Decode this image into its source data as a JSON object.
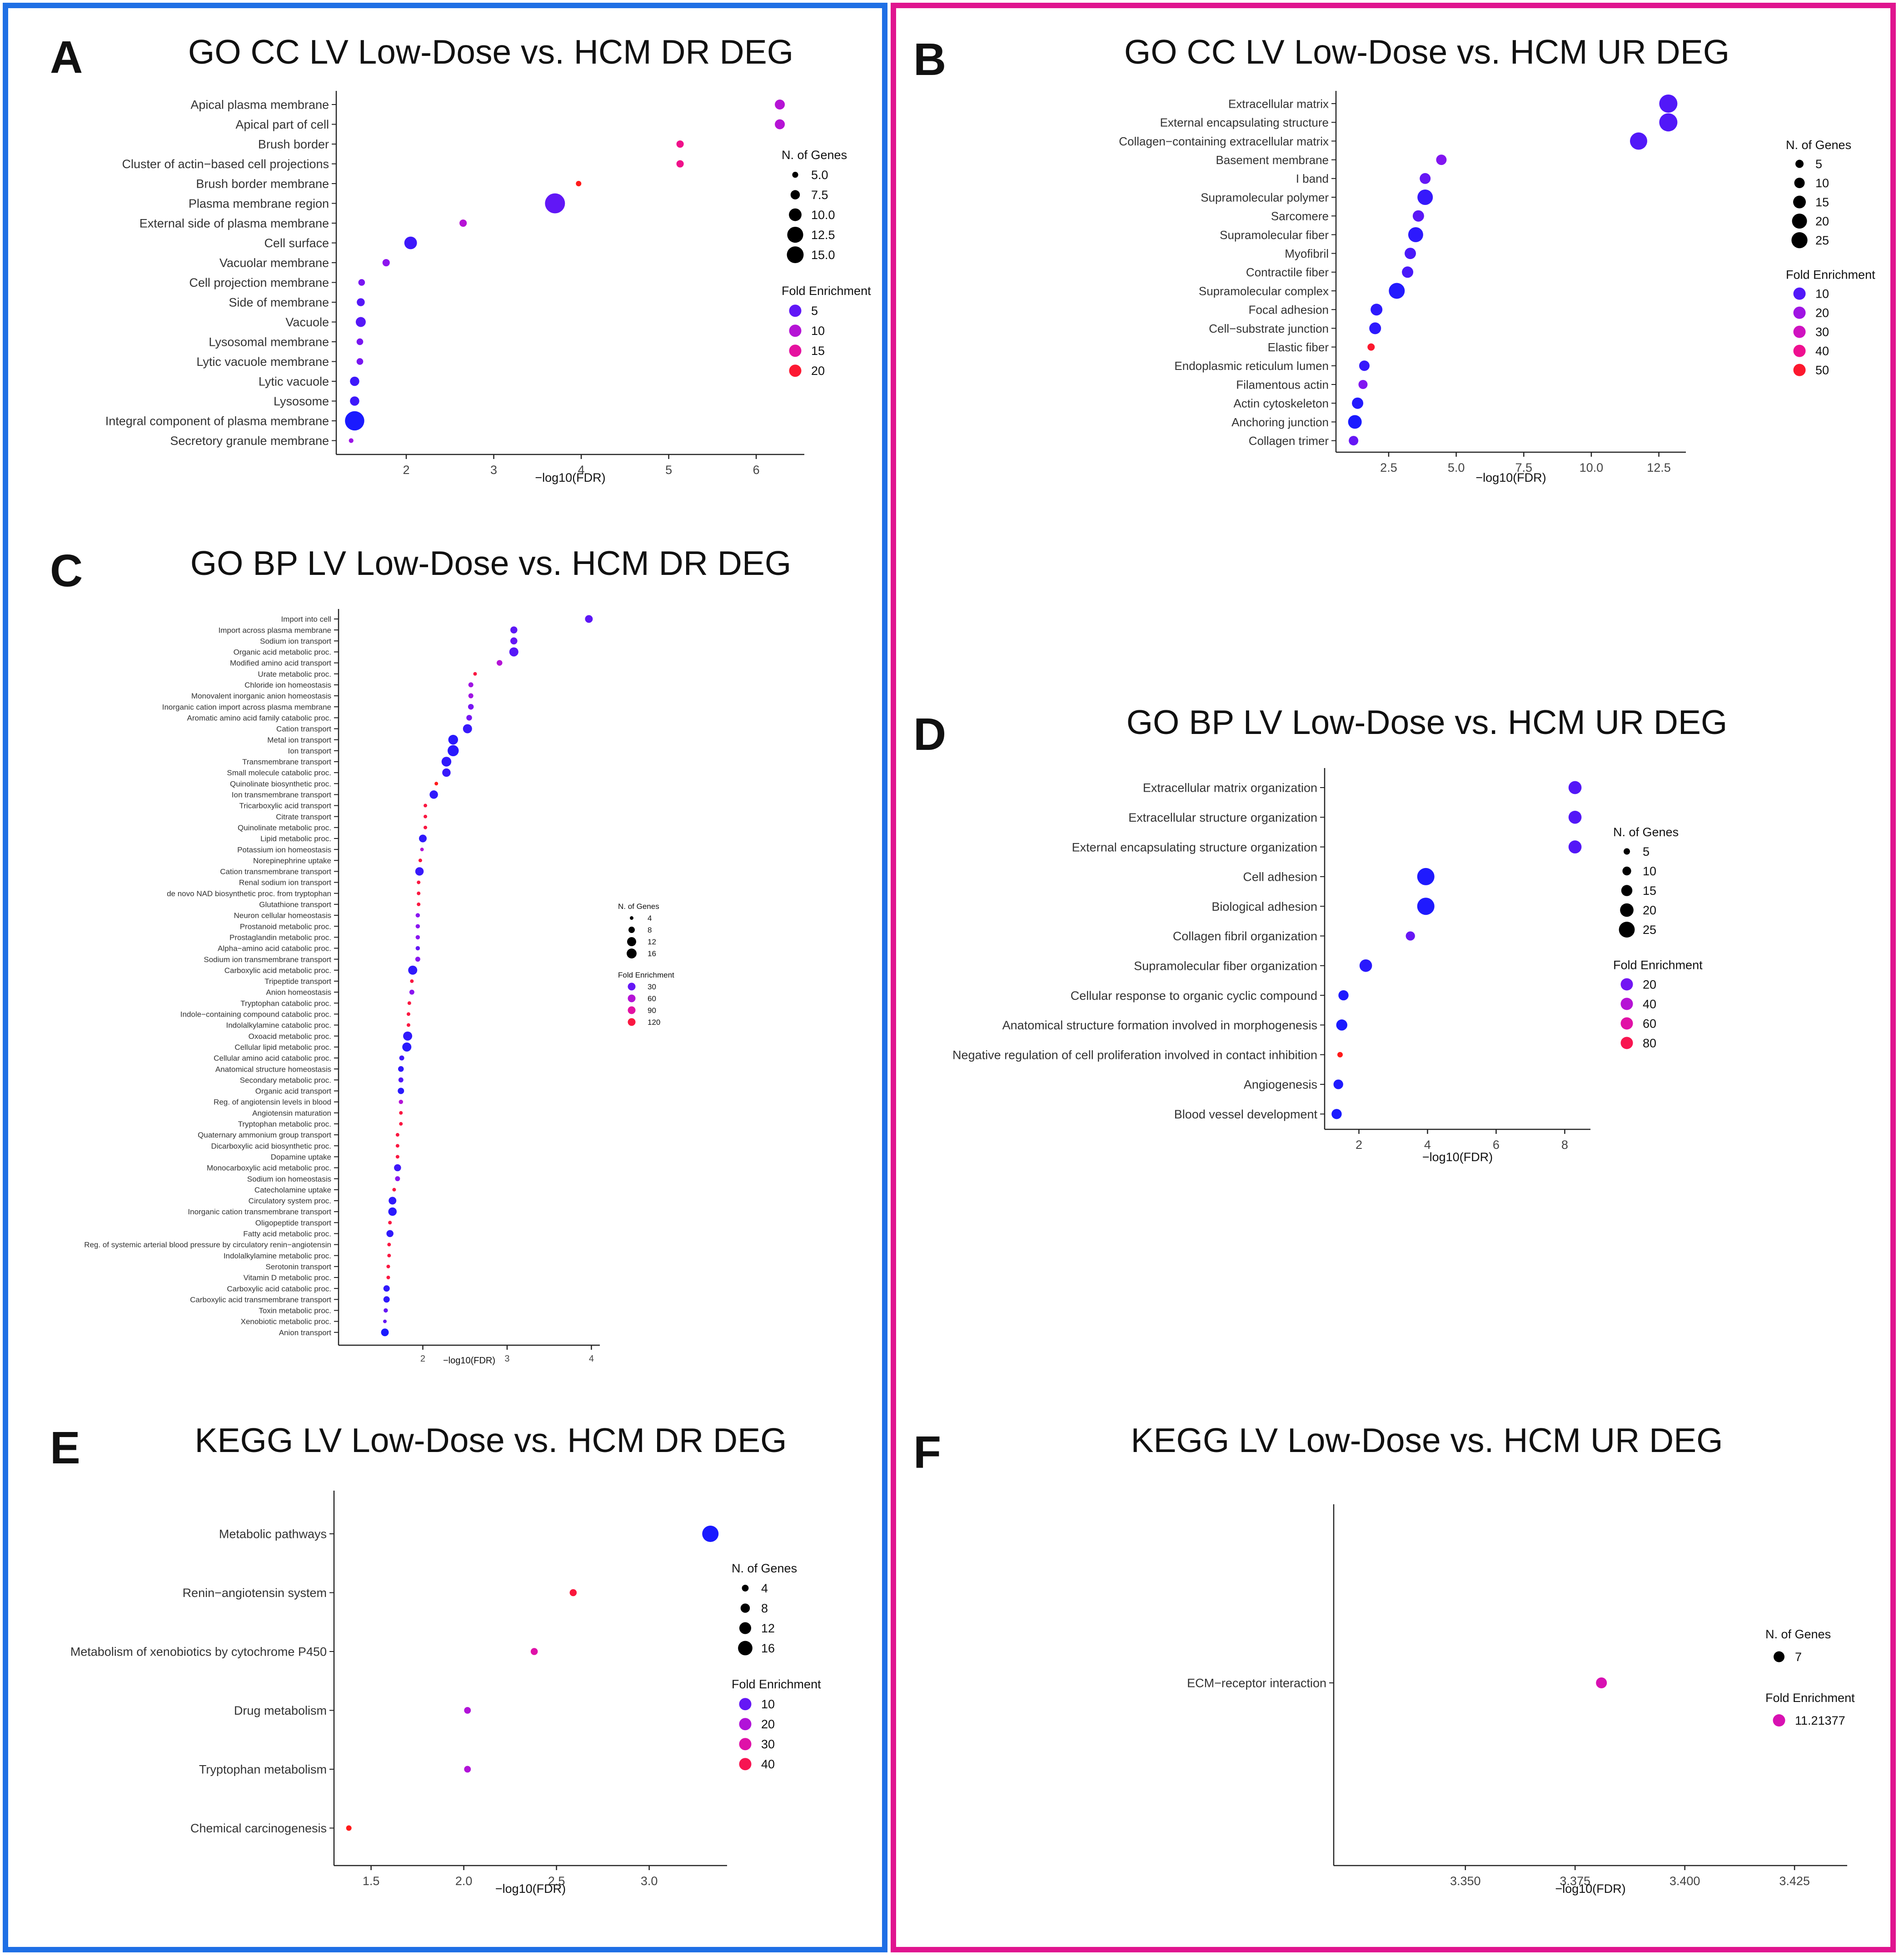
{
  "figure": {
    "left_frame_color": "#1f6fe5",
    "right_frame_color": "#e0158f",
    "size_legend_title": "N. of Genes",
    "color_legend_title": "Fold Enrichment",
    "color_scale": [
      "#8a15f0",
      "#c912c9",
      "#ef1090",
      "#ff1a1a"
    ],
    "low_color": "#1a1aff"
  },
  "chart_data": [
    {
      "panel": "A",
      "type": "scatter",
      "title": "GO CC LV Low-Dose vs. HCM DR DEG",
      "xlabel": "−log10(FDR)",
      "xticks": [
        2,
        3,
        4,
        5,
        6
      ],
      "xlim": [
        1.2,
        6.55
      ],
      "categories": [
        "Apical plasma membrane",
        "Apical part of cell",
        "Brush border",
        "Cluster of actin−based cell projections",
        "Brush border membrane",
        "Plasma membrane region",
        "External side of plasma membrane",
        "Cell surface",
        "Vacuolar membrane",
        "Cell projection membrane",
        "Side of membrane",
        "Vacuole",
        "Lysosomal membrane",
        "Lytic vacuole membrane",
        "Lytic vacuole",
        "Lysosome",
        "Integral component of plasma membrane",
        "Secretory granule membrane"
      ],
      "x": [
        6.27,
        6.27,
        5.13,
        5.13,
        3.97,
        3.7,
        2.65,
        2.05,
        1.77,
        1.49,
        1.48,
        1.48,
        1.47,
        1.47,
        1.41,
        1.41,
        1.41,
        1.37
      ],
      "genes": [
        8,
        8,
        6,
        6,
        4.6,
        15.5,
        6,
        10,
        6,
        5.5,
        6.5,
        8,
        5.5,
        5.5,
        7.5,
        7.5,
        15,
        4
      ],
      "fold": [
        10,
        10,
        16.5,
        16.5,
        21,
        5,
        10,
        3.5,
        7,
        6,
        4.5,
        4.5,
        6,
        6,
        3.5,
        3.5,
        2,
        8
      ],
      "size_legend": {
        "values": [
          5.0,
          7.5,
          10.0,
          12.5,
          15.0
        ],
        "labels": [
          "5.0",
          "7.5",
          "10.0",
          "12.5",
          "15.0"
        ],
        "range": [
          4.6,
          15.5
        ]
      },
      "color_legend": {
        "values": [
          5,
          10,
          15,
          20
        ],
        "range": [
          2,
          21
        ]
      }
    },
    {
      "panel": "B",
      "type": "scatter",
      "title": "GO CC LV Low-Dose vs. HCM UR DEG",
      "xlabel": "−log10(FDR)",
      "xticks": [
        2.5,
        5.0,
        7.5,
        10.0,
        12.5
      ],
      "xtick_labels": [
        "2.5",
        "5.0",
        "7.5",
        "10.0",
        "12.5"
      ],
      "xlim": [
        0.55,
        13.5
      ],
      "categories": [
        "Extracellular matrix",
        "External encapsulating structure",
        "Collagen−containing extracellular matrix",
        "Basement membrane",
        "I band",
        "Supramolecular polymer",
        "Sarcomere",
        "Supramolecular fiber",
        "Myofibril",
        "Contractile fiber",
        "Supramolecular complex",
        "Focal adhesion",
        "Cell−substrate junction",
        "Elastic fiber",
        "Endoplasmic reticulum lumen",
        "Filamentous actin",
        "Actin cytoskeleton",
        "Anchoring junction",
        "Collagen trimer"
      ],
      "x": [
        12.85,
        12.85,
        11.75,
        4.45,
        3.85,
        3.85,
        3.6,
        3.5,
        3.3,
        3.2,
        2.8,
        2.05,
        2.0,
        1.85,
        1.6,
        1.55,
        1.35,
        1.25,
        1.2
      ],
      "genes": [
        27,
        27,
        25,
        10,
        11,
        21,
        12,
        20,
        12,
        12,
        22,
        13,
        13,
        3,
        10,
        7,
        12,
        17,
        8
      ],
      "fold": [
        10,
        10,
        10,
        15,
        12,
        7,
        11,
        6,
        9,
        9,
        5,
        6,
        6,
        50,
        7,
        15,
        5,
        4,
        12
      ],
      "size_legend": {
        "values": [
          5,
          10,
          15,
          20,
          25
        ],
        "labels": [
          "5",
          "10",
          "15",
          "20",
          "25"
        ],
        "range": [
          3,
          27
        ]
      },
      "color_legend": {
        "values": [
          10,
          20,
          30,
          40,
          50
        ],
        "range": [
          4,
          52
        ]
      }
    },
    {
      "panel": "C",
      "type": "scatter",
      "title": "GO BP LV Low-Dose vs. HCM DR DEG",
      "xlabel": "−log10(FDR)",
      "xticks": [
        2,
        3,
        4
      ],
      "xlim": [
        1.0,
        4.1
      ],
      "categories": [
        "Import into cell",
        "Import across plasma membrane",
        "Sodium ion transport",
        "Organic acid metabolic proc.",
        "Modified amino acid transport",
        "Urate metabolic proc.",
        "Chloride ion homeostasis",
        "Monovalent inorganic anion homeostasis",
        "Inorganic cation import across plasma membrane",
        "Aromatic amino acid family catabolic proc.",
        "Cation transport",
        "Metal ion transport",
        "Ion transport",
        "Transmembrane transport",
        "Small molecule catabolic proc.",
        "Quinolinate biosynthetic proc.",
        "Ion transmembrane transport",
        "Tricarboxylic acid transport",
        "Citrate transport",
        "Quinolinate metabolic proc.",
        "Lipid metabolic proc.",
        "Potassium ion homeostasis",
        "Norepinephrine uptake",
        "Cation transmembrane transport",
        "Renal sodium ion transport",
        "de novo  NAD biosynthetic proc. from tryptophan",
        "Glutathione transport",
        "Neuron cellular homeostasis",
        "Prostanoid metabolic proc.",
        "Prostaglandin metabolic proc.",
        "Alpha−amino acid catabolic proc.",
        "Sodium ion transmembrane transport",
        "Carboxylic acid metabolic proc.",
        "Tripeptide transport",
        "Anion homeostasis",
        "Tryptophan catabolic proc.",
        "Indole−containing compound catabolic proc.",
        "Indolalkylamine catabolic proc.",
        "Oxoacid metabolic proc.",
        "Cellular lipid metabolic proc.",
        "Cellular amino acid catabolic proc.",
        "Anatomical structure homeostasis",
        "Secondary metabolic proc.",
        "Organic acid transport",
        "Reg. of angiotensin levels in blood",
        "Angiotensin maturation",
        "Tryptophan metabolic proc.",
        "Quaternary ammonium group transport",
        "Dicarboxylic acid biosynthetic proc.",
        "Dopamine uptake",
        "Monocarboxylic acid metabolic proc.",
        "Sodium ion homeostasis",
        "Catecholamine uptake",
        "Circulatory system proc.",
        "Inorganic cation transmembrane transport",
        "Oligopeptide transport",
        "Fatty acid metabolic proc.",
        "Reg. of systemic arterial blood pressure by circulatory renin−angiotensin",
        "Indolalkylamine metabolic proc.",
        "Serotonin transport",
        "Vitamin D metabolic proc.",
        "Carboxylic acid catabolic proc.",
        "Carboxylic acid transmembrane transport",
        "Toxin metabolic proc.",
        "Xenobiotic metabolic proc.",
        "Anion transport"
      ],
      "x": [
        3.97,
        3.08,
        3.08,
        3.08,
        2.91,
        2.62,
        2.57,
        2.57,
        2.57,
        2.55,
        2.53,
        2.36,
        2.36,
        2.28,
        2.28,
        2.16,
        2.13,
        2.03,
        2.03,
        2.03,
        2.0,
        1.99,
        1.97,
        1.96,
        1.95,
        1.95,
        1.95,
        1.94,
        1.94,
        1.94,
        1.94,
        1.94,
        1.88,
        1.87,
        1.87,
        1.84,
        1.83,
        1.83,
        1.82,
        1.81,
        1.75,
        1.74,
        1.74,
        1.74,
        1.74,
        1.74,
        1.74,
        1.7,
        1.7,
        1.7,
        1.7,
        1.7,
        1.66,
        1.64,
        1.64,
        1.61,
        1.61,
        1.6,
        1.6,
        1.59,
        1.59,
        1.57,
        1.57,
        1.56,
        1.55,
        1.55
      ],
      "genes": [
        10,
        9,
        9,
        12,
        7,
        4,
        6,
        6,
        7,
        7,
        12,
        13,
        15,
        13,
        11,
        4,
        11,
        4,
        4,
        4,
        10,
        4,
        4,
        11,
        4,
        4,
        4,
        5,
        5,
        5,
        5,
        6,
        12,
        4,
        6,
        4,
        4,
        4,
        12,
        12,
        6,
        7,
        6,
        8,
        5,
        4,
        4,
        4,
        4,
        4,
        9,
        6,
        4,
        10,
        11,
        4,
        9,
        4,
        4,
        4,
        4,
        8,
        8,
        5,
        4,
        10
      ],
      "fold": [
        28,
        28,
        30,
        26,
        60,
        120,
        50,
        50,
        35,
        35,
        18,
        14,
        14,
        16,
        18,
        130,
        16,
        120,
        120,
        120,
        16,
        60,
        120,
        18,
        120,
        120,
        120,
        40,
        40,
        40,
        30,
        40,
        16,
        120,
        40,
        120,
        120,
        120,
        16,
        14,
        20,
        16,
        25,
        14,
        60,
        120,
        120,
        120,
        120,
        120,
        20,
        40,
        120,
        16,
        14,
        120,
        16,
        120,
        120,
        120,
        120,
        16,
        16,
        30,
        30,
        10
      ],
      "size_legend": {
        "values": [
          4,
          8,
          12,
          16
        ],
        "labels": [
          "4",
          "8",
          "12",
          "16"
        ],
        "range": [
          4,
          16
        ]
      },
      "color_legend": {
        "values": [
          30,
          60,
          90,
          120
        ],
        "range": [
          10,
          130
        ]
      }
    },
    {
      "panel": "D",
      "type": "scatter",
      "title": "GO BP LV Low-Dose vs. HCM UR DEG",
      "xlabel": "−log10(FDR)",
      "xticks": [
        2,
        4,
        6,
        8
      ],
      "xlim": [
        1.0,
        8.75
      ],
      "categories": [
        "Extracellular matrix organization",
        "Extracellular structure organization",
        "External encapsulating structure organization",
        "Cell adhesion",
        "Biological adhesion",
        "Collagen fibril organization",
        "Supramolecular fiber organization",
        "Cellular response to organic cyclic compound",
        "Anatomical structure formation involved in morphogenesis",
        "Negative regulation of cell proliferation involved in contact inhibition",
        "Angiogenesis",
        "Blood vessel development"
      ],
      "x": [
        8.3,
        8.3,
        8.3,
        3.95,
        3.95,
        3.5,
        2.2,
        1.55,
        1.5,
        1.45,
        1.4,
        1.35
      ],
      "genes": [
        19,
        19,
        19,
        28,
        28,
        11,
        18,
        13,
        15,
        3,
        12,
        13
      ],
      "fold": [
        14,
        14,
        14,
        4,
        4,
        18,
        6,
        4,
        3,
        90,
        4,
        3
      ],
      "size_legend": {
        "values": [
          5,
          10,
          15,
          20,
          25
        ],
        "labels": [
          "5",
          "10",
          "15",
          "20",
          "25"
        ],
        "range": [
          3,
          28
        ]
      },
      "color_legend": {
        "values": [
          20,
          40,
          60,
          80
        ],
        "range": [
          3,
          90
        ]
      }
    },
    {
      "panel": "E",
      "type": "scatter",
      "title": "KEGG LV Low-Dose vs. HCM DR DEG",
      "xlabel": "−log10(FDR)",
      "xticks": [
        1.5,
        2.0,
        2.5,
        3.0
      ],
      "xtick_labels": [
        "1.5",
        "2.0",
        "2.5",
        "3.0"
      ],
      "xlim": [
        1.3,
        3.42
      ],
      "categories": [
        "Metabolic pathways",
        "Renin−angiotensin system",
        "Metabolism of xenobiotics by cytochrome P450",
        "Drug metabolism",
        "Tryptophan metabolism",
        "Chemical carcinogenesis"
      ],
      "x": [
        3.33,
        2.59,
        2.38,
        2.02,
        2.02,
        1.38
      ],
      "genes": [
        19,
        4.5,
        4.5,
        4,
        4,
        2
      ],
      "fold": [
        3,
        42,
        30,
        20,
        20,
        45
      ],
      "size_legend": {
        "values": [
          4,
          8,
          12,
          16
        ],
        "labels": [
          "4",
          "8",
          "12",
          "16"
        ],
        "range": [
          2,
          19
        ]
      },
      "color_legend": {
        "values": [
          10,
          20,
          30,
          40
        ],
        "range": [
          3,
          45
        ]
      }
    },
    {
      "panel": "F",
      "type": "scatter",
      "title": "KEGG LV Low-Dose vs. HCM UR DEG",
      "xlabel": "−log10(FDR)",
      "xticks": [
        3.35,
        3.375,
        3.4,
        3.425
      ],
      "xtick_labels": [
        "3.350",
        "3.375",
        "3.400",
        "3.425"
      ],
      "xlim": [
        3.32,
        3.437
      ],
      "categories": [
        "ECM−receptor interaction"
      ],
      "x": [
        3.381
      ],
      "genes": [
        7
      ],
      "fold": [
        11.21377
      ],
      "size_legend": {
        "values": [
          7
        ],
        "labels": [
          "7"
        ],
        "range": [
          7,
          7
        ]
      },
      "color_legend": {
        "values": [
          11.21377
        ],
        "labels": [
          "11.21377"
        ],
        "range": [
          11.21377,
          11.21377
        ]
      }
    }
  ]
}
